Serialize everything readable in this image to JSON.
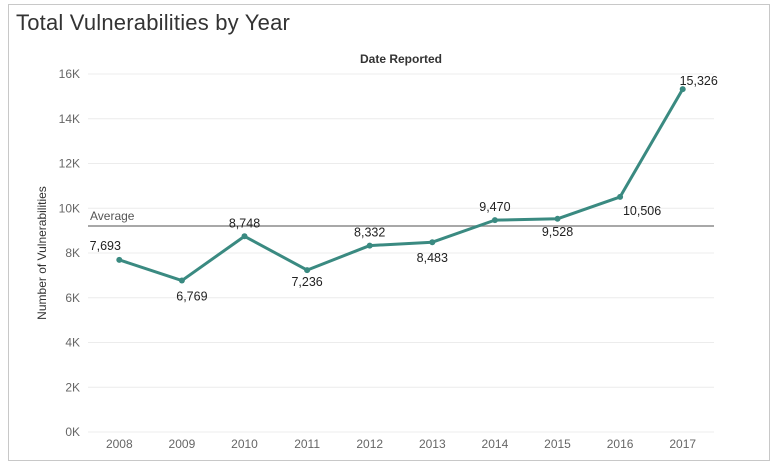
{
  "title": "Total Vulnerabilities by Year",
  "chart_data": {
    "type": "line",
    "header": "Date Reported",
    "ylabel": "Number of Vulnerabilities",
    "xlabel": "",
    "categories": [
      "2008",
      "2009",
      "2010",
      "2011",
      "2012",
      "2013",
      "2014",
      "2015",
      "2016",
      "2017"
    ],
    "series": [
      {
        "values": [
          7693,
          6769,
          8748,
          7236,
          8332,
          8483,
          9470,
          9528,
          10506,
          15326
        ],
        "labels": [
          "7,693",
          "6,769",
          "8,748",
          "7,236",
          "8,332",
          "8,483",
          "9,470",
          "9,528",
          "10,506",
          "15,326"
        ],
        "color": "#3a8a81"
      }
    ],
    "ylim": [
      0,
      16000
    ],
    "y_ticks": [
      0,
      2000,
      4000,
      6000,
      8000,
      10000,
      12000,
      14000,
      16000
    ],
    "y_tick_labels": [
      "0K",
      "2K",
      "4K",
      "6K",
      "8K",
      "10K",
      "12K",
      "14K",
      "16K"
    ],
    "reference_line": {
      "label": "Average",
      "value": 9209,
      "color": "#8c8c8c"
    },
    "grid": true,
    "legend": false
  }
}
